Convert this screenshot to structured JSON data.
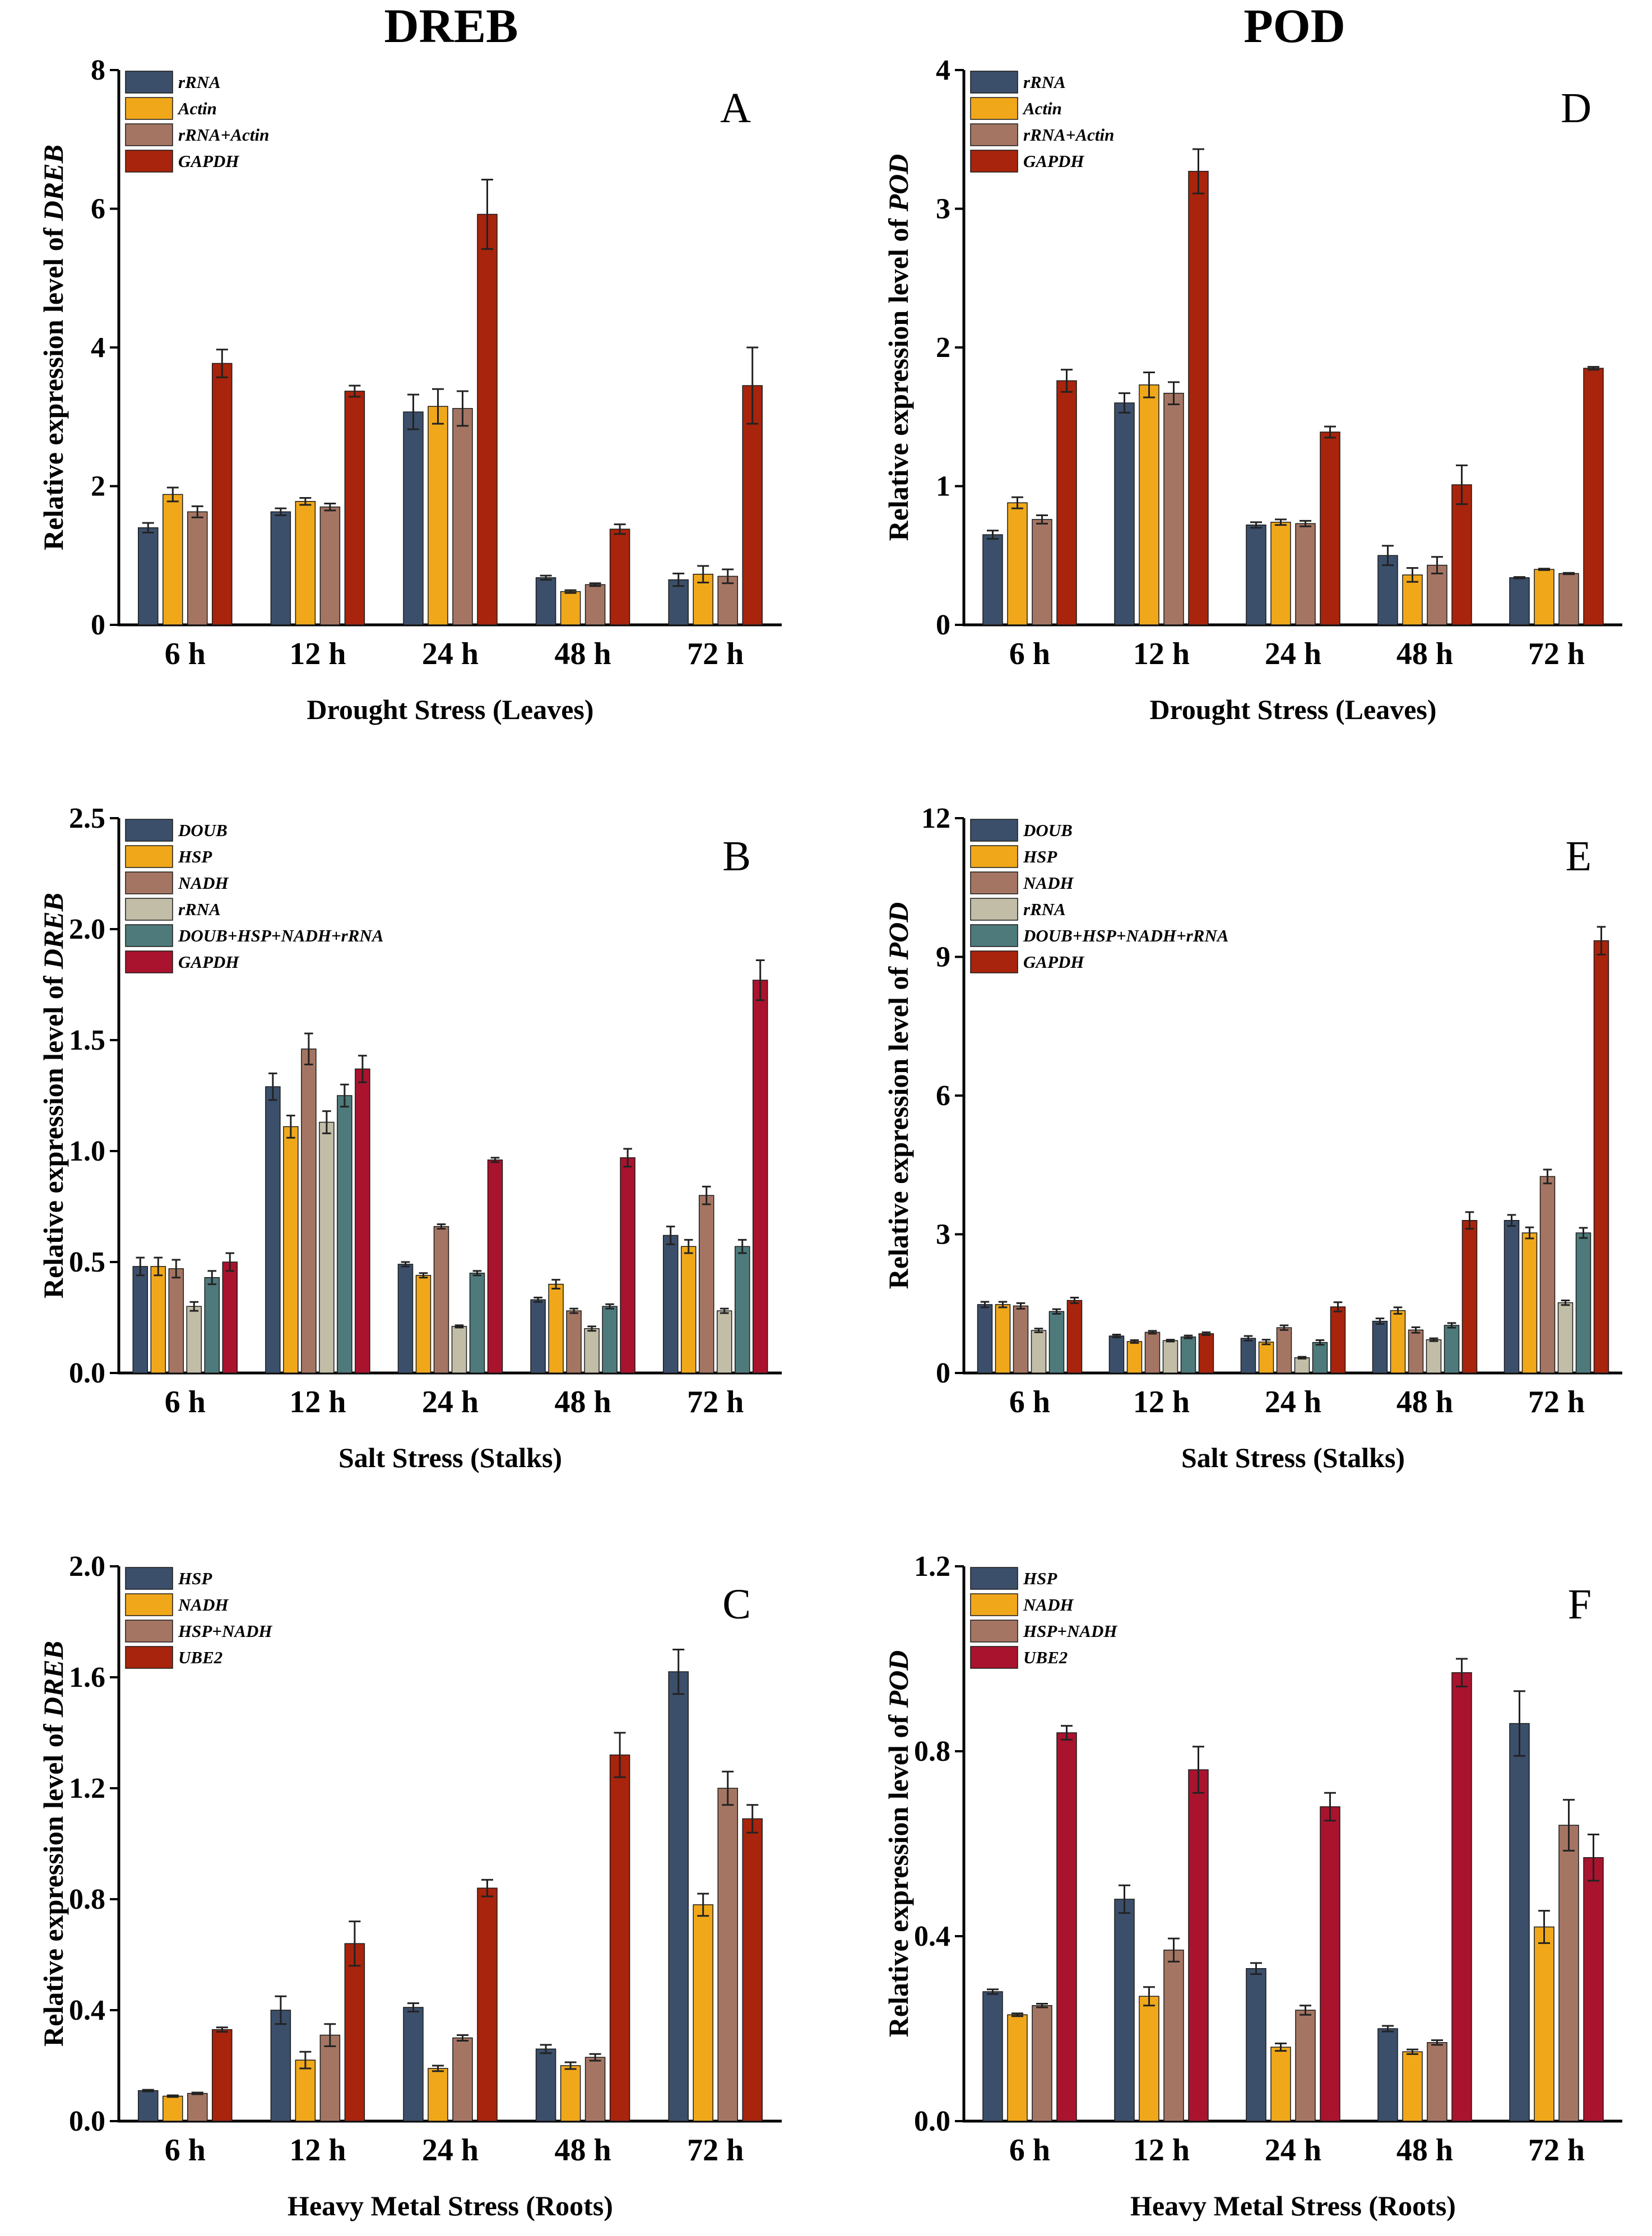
{
  "column_titles": [
    "DREB",
    "POD"
  ],
  "colors": {
    "slate": "#3b4f6b",
    "orange": "#f0a81a",
    "brown": "#a57563",
    "rust": "#a8240c",
    "beige": "#c2bda7",
    "teal": "#4e7a7c",
    "crimson": "#a9132e"
  },
  "chart_data": [
    {
      "panel": "A",
      "type": "bar",
      "title": "DREB",
      "xlabel": "Drought Stress (Leaves)",
      "ylabel_prefix": "Relative expression level of ",
      "ylabel_gene": "DREB",
      "ylim": [
        0,
        8
      ],
      "yticks": [
        "0",
        "2",
        "4",
        "6",
        "8"
      ],
      "categories": [
        "6 h",
        "12 h",
        "24 h",
        "48 h",
        "72 h"
      ],
      "series": [
        {
          "name": "rRNA",
          "color": "slate",
          "values": [
            1.4,
            1.63,
            3.07,
            0.68,
            0.65
          ],
          "errors": [
            0.07,
            0.05,
            0.25,
            0.03,
            0.09
          ]
        },
        {
          "name": "Actin",
          "color": "orange",
          "values": [
            1.88,
            1.78,
            3.15,
            0.48,
            0.73
          ],
          "errors": [
            0.1,
            0.05,
            0.25,
            0.02,
            0.12
          ]
        },
        {
          "name": "rRNA+Actin",
          "color": "brown",
          "values": [
            1.63,
            1.7,
            3.12,
            0.58,
            0.7
          ],
          "errors": [
            0.08,
            0.05,
            0.25,
            0.02,
            0.1
          ]
        },
        {
          "name": "GAPDH",
          "color": "rust",
          "values": [
            3.77,
            3.37,
            5.92,
            1.38,
            3.45
          ],
          "errors": [
            0.2,
            0.08,
            0.5,
            0.07,
            0.55
          ]
        }
      ]
    },
    {
      "panel": "D",
      "type": "bar",
      "title": "POD",
      "xlabel": "Drought Stress (Leaves)",
      "ylabel_prefix": "Relative expression level of ",
      "ylabel_gene": "POD",
      "ylim": [
        0,
        4
      ],
      "yticks": [
        "0",
        "1",
        "2",
        "3",
        "4"
      ],
      "categories": [
        "6 h",
        "12 h",
        "24 h",
        "48 h",
        "72 h"
      ],
      "series": [
        {
          "name": "rRNA",
          "color": "slate",
          "values": [
            0.65,
            1.6,
            0.72,
            0.5,
            0.34
          ],
          "errors": [
            0.03,
            0.07,
            0.02,
            0.07,
            0.005
          ]
        },
        {
          "name": "Actin",
          "color": "orange",
          "values": [
            0.88,
            1.73,
            0.74,
            0.36,
            0.4
          ],
          "errors": [
            0.04,
            0.09,
            0.02,
            0.05,
            0.005
          ]
        },
        {
          "name": "rRNA+Actin",
          "color": "brown",
          "values": [
            0.76,
            1.67,
            0.73,
            0.43,
            0.37
          ],
          "errors": [
            0.03,
            0.08,
            0.02,
            0.06,
            0.005
          ]
        },
        {
          "name": "GAPDH",
          "color": "rust",
          "values": [
            1.76,
            3.27,
            1.39,
            1.01,
            1.85
          ],
          "errors": [
            0.08,
            0.16,
            0.04,
            0.14,
            0.01
          ]
        }
      ]
    },
    {
      "panel": "B",
      "type": "bar",
      "title": "DREB",
      "xlabel": "Salt Stress (Stalks)",
      "ylabel_prefix": "Relative expression level of ",
      "ylabel_gene": "DREB",
      "ylim": [
        0,
        2.5
      ],
      "yticks": [
        "0.0",
        "0.5",
        "1.0",
        "1.5",
        "2.0",
        "2.5"
      ],
      "categories": [
        "6 h",
        "12 h",
        "24 h",
        "48 h",
        "72 h"
      ],
      "series": [
        {
          "name": "DOUB",
          "color": "slate",
          "values": [
            0.48,
            1.29,
            0.49,
            0.33,
            0.62
          ],
          "errors": [
            0.04,
            0.06,
            0.01,
            0.01,
            0.04
          ]
        },
        {
          "name": "HSP",
          "color": "orange",
          "values": [
            0.48,
            1.11,
            0.44,
            0.4,
            0.57
          ],
          "errors": [
            0.04,
            0.05,
            0.01,
            0.02,
            0.03
          ]
        },
        {
          "name": "NADH",
          "color": "brown",
          "values": [
            0.47,
            1.46,
            0.66,
            0.28,
            0.8
          ],
          "errors": [
            0.04,
            0.07,
            0.01,
            0.01,
            0.04
          ]
        },
        {
          "name": "rRNA",
          "color": "beige",
          "values": [
            0.3,
            1.13,
            0.21,
            0.2,
            0.28
          ],
          "errors": [
            0.02,
            0.05,
            0.005,
            0.01,
            0.01
          ]
        },
        {
          "name": "DOUB+HSP+NADH+rRNA",
          "color": "teal",
          "values": [
            0.43,
            1.25,
            0.45,
            0.3,
            0.57
          ],
          "errors": [
            0.03,
            0.05,
            0.01,
            0.01,
            0.03
          ]
        },
        {
          "name": "GAPDH",
          "color": "crimson",
          "values": [
            0.5,
            1.37,
            0.96,
            0.97,
            1.77
          ],
          "errors": [
            0.04,
            0.06,
            0.01,
            0.04,
            0.09
          ]
        }
      ]
    },
    {
      "panel": "E",
      "type": "bar",
      "title": "POD",
      "xlabel": "Salt Stress (Stalks)",
      "ylabel_prefix": "Relative expression level of ",
      "ylabel_gene": "POD",
      "ylim": [
        0,
        12
      ],
      "yticks": [
        "0",
        "3",
        "6",
        "9",
        "12"
      ],
      "categories": [
        "6 h",
        "12 h",
        "24 h",
        "48 h",
        "72 h"
      ],
      "series": [
        {
          "name": "DOUB",
          "color": "slate",
          "values": [
            1.48,
            0.8,
            0.75,
            1.12,
            3.3
          ],
          "errors": [
            0.06,
            0.03,
            0.05,
            0.06,
            0.12
          ]
        },
        {
          "name": "HSP",
          "color": "orange",
          "values": [
            1.48,
            0.68,
            0.67,
            1.35,
            3.03
          ],
          "errors": [
            0.06,
            0.03,
            0.05,
            0.07,
            0.12
          ]
        },
        {
          "name": "NADH",
          "color": "brown",
          "values": [
            1.45,
            0.88,
            0.98,
            0.93,
            4.25
          ],
          "errors": [
            0.06,
            0.03,
            0.05,
            0.06,
            0.15
          ]
        },
        {
          "name": "rRNA",
          "color": "beige",
          "values": [
            0.92,
            0.7,
            0.33,
            0.72,
            1.52
          ],
          "errors": [
            0.04,
            0.02,
            0.02,
            0.03,
            0.05
          ]
        },
        {
          "name": "DOUB+HSP+NADH+rRNA",
          "color": "teal",
          "values": [
            1.33,
            0.78,
            0.66,
            1.03,
            3.03
          ],
          "errors": [
            0.05,
            0.03,
            0.05,
            0.05,
            0.11
          ]
        },
        {
          "name": "GAPDH",
          "color": "rust",
          "values": [
            1.57,
            0.85,
            1.43,
            3.3,
            9.35
          ],
          "errors": [
            0.06,
            0.03,
            0.1,
            0.18,
            0.3
          ]
        }
      ]
    },
    {
      "panel": "C",
      "type": "bar",
      "title": "DREB",
      "xlabel": "Heavy Metal Stress (Roots)",
      "ylabel_prefix": "Relative expression level of ",
      "ylabel_gene": "DREB",
      "ylim": [
        0,
        2.0
      ],
      "yticks": [
        "0.0",
        "0.4",
        "0.8",
        "1.2",
        "1.6",
        "2.0"
      ],
      "categories": [
        "6 h",
        "12 h",
        "24 h",
        "48 h",
        "72 h"
      ],
      "series": [
        {
          "name": "HSP",
          "color": "slate",
          "values": [
            0.11,
            0.4,
            0.41,
            0.26,
            1.62
          ],
          "errors": [
            0.003,
            0.05,
            0.015,
            0.015,
            0.08
          ]
        },
        {
          "name": "NADH",
          "color": "orange",
          "values": [
            0.09,
            0.22,
            0.19,
            0.2,
            0.78
          ],
          "errors": [
            0.003,
            0.03,
            0.01,
            0.012,
            0.04
          ]
        },
        {
          "name": "HSP+NADH",
          "color": "brown",
          "values": [
            0.1,
            0.31,
            0.3,
            0.23,
            1.2
          ],
          "errors": [
            0.003,
            0.04,
            0.01,
            0.012,
            0.06
          ]
        },
        {
          "name": "UBE2",
          "color": "rust",
          "values": [
            0.33,
            0.64,
            0.84,
            1.32,
            1.09
          ],
          "errors": [
            0.008,
            0.08,
            0.03,
            0.08,
            0.05
          ]
        }
      ]
    },
    {
      "panel": "F",
      "type": "bar",
      "title": "POD",
      "xlabel": "Heavy Metal Stress (Roots)",
      "ylabel_prefix": "Relative expression level of ",
      "ylabel_gene": "POD",
      "ylim": [
        0,
        1.2
      ],
      "yticks": [
        "0.0",
        "0.4",
        "0.8",
        "1.2"
      ],
      "categories": [
        "6 h",
        "12 h",
        "24 h",
        "48 h",
        "72 h"
      ],
      "series": [
        {
          "name": "HSP",
          "color": "slate",
          "values": [
            0.28,
            0.48,
            0.33,
            0.2,
            0.86
          ],
          "errors": [
            0.005,
            0.03,
            0.012,
            0.006,
            0.07
          ]
        },
        {
          "name": "NADH",
          "color": "orange",
          "values": [
            0.23,
            0.27,
            0.16,
            0.15,
            0.42
          ],
          "errors": [
            0.003,
            0.02,
            0.008,
            0.005,
            0.035
          ]
        },
        {
          "name": "HSP+NADH",
          "color": "brown",
          "values": [
            0.25,
            0.37,
            0.24,
            0.17,
            0.64
          ],
          "errors": [
            0.004,
            0.025,
            0.01,
            0.005,
            0.055
          ]
        },
        {
          "name": "UBE2",
          "color": "crimson",
          "values": [
            0.84,
            0.76,
            0.68,
            0.97,
            0.57
          ],
          "errors": [
            0.015,
            0.05,
            0.03,
            0.03,
            0.05
          ]
        }
      ]
    }
  ]
}
